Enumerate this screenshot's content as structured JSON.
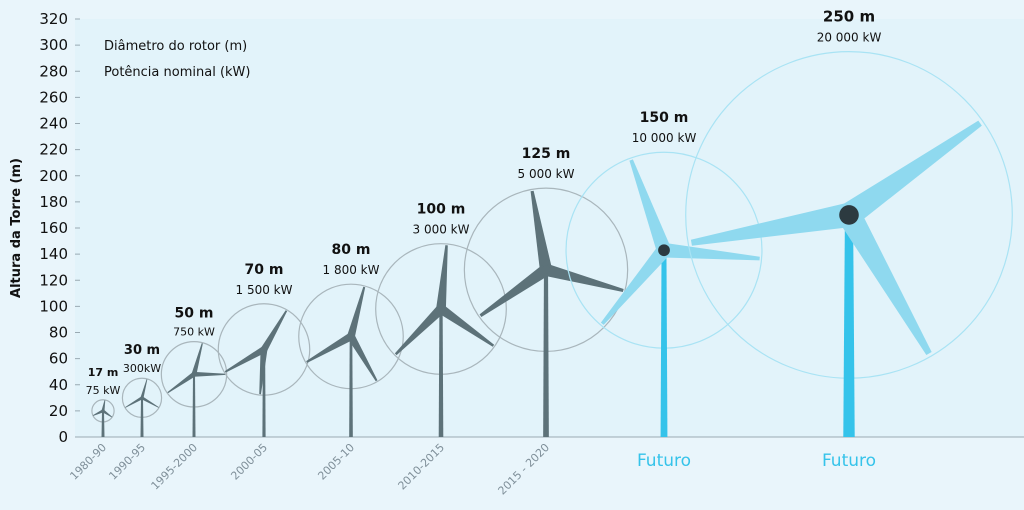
{
  "chart_data": {
    "type": "scatter",
    "ylabel": "Altura da Torre (m)",
    "ylim": [
      0,
      320
    ],
    "yticks": [
      0,
      20,
      40,
      60,
      80,
      100,
      120,
      140,
      160,
      180,
      200,
      220,
      240,
      260,
      280,
      300,
      320
    ],
    "legend": [
      "Diâmetro do rotor (m)",
      "Potência nominal (kW)"
    ],
    "legend_position": "top-left",
    "grid": false,
    "colors": {
      "current": "#5d7279",
      "future": "#35c3ea",
      "hub_future": "#2c3a40"
    },
    "points": [
      {
        "category": "1980-90",
        "hub_height": 20,
        "rotor_diameter": 17,
        "diameter_label": "17 m",
        "power_label": "75 kW",
        "future": false
      },
      {
        "category": "1990-95",
        "hub_height": 30,
        "rotor_diameter": 30,
        "diameter_label": "30 m",
        "power_label": "300kW",
        "future": false
      },
      {
        "category": "1995-2000",
        "hub_height": 48,
        "rotor_diameter": 50,
        "diameter_label": "50 m",
        "power_label": "750 kW",
        "future": false
      },
      {
        "category": "2000-05",
        "hub_height": 67,
        "rotor_diameter": 70,
        "diameter_label": "70 m",
        "power_label": "1 500 kW",
        "future": false
      },
      {
        "category": "2005-10",
        "hub_height": 77,
        "rotor_diameter": 80,
        "diameter_label": "80 m",
        "power_label": "1 800 kW",
        "future": false
      },
      {
        "category": "2010-2015",
        "hub_height": 98,
        "rotor_diameter": 100,
        "diameter_label": "100 m",
        "power_label": "3 000 kW",
        "future": false
      },
      {
        "category": "2015 - 2020",
        "hub_height": 128,
        "rotor_diameter": 125,
        "diameter_label": "125 m",
        "power_label": "5 000 kW",
        "future": false
      },
      {
        "category": "Futuro",
        "hub_height": 143,
        "rotor_diameter": 150,
        "diameter_label": "150 m",
        "power_label": "10 000 kW",
        "future": true
      },
      {
        "category": "Futuro",
        "hub_height": 170,
        "rotor_diameter": 250,
        "diameter_label": "250 m",
        "power_label": "20 000 kW",
        "future": true
      }
    ]
  }
}
